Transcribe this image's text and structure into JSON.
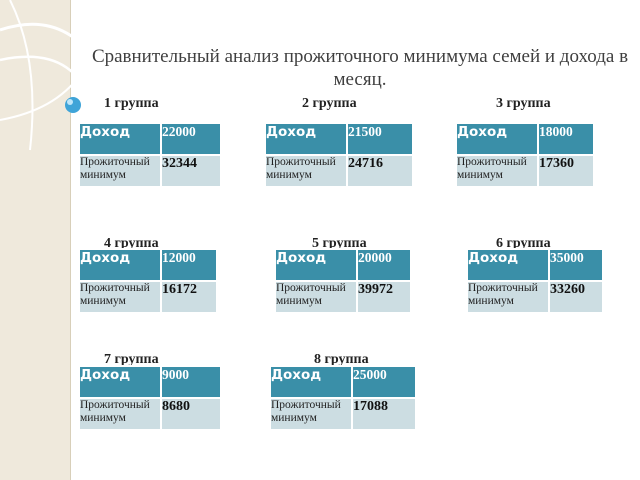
{
  "title": "Сравнительный анализ прожиточного минимума семей и дохода в месяц.",
  "labels": {
    "income": "Доход",
    "minimum": "Прожиточный минимум"
  },
  "groups": [
    {
      "label": "1 группа",
      "income": "22000",
      "minimum": "32344"
    },
    {
      "label": "2 группа",
      "income": "21500",
      "minimum": "24716"
    },
    {
      "label": "3 группа",
      "income": "18000",
      "minimum": "17360"
    },
    {
      "label": "4 группа",
      "income": "12000",
      "minimum": "16172"
    },
    {
      "label": "5 группа",
      "income": "20000",
      "minimum": "39972"
    },
    {
      "label": "6 группа",
      "income": "35000",
      "minimum": "33260"
    },
    {
      "label": "7 группа",
      "income": "9000",
      "minimum": "8680"
    },
    {
      "label": "8 группа",
      "income": "25000",
      "minimum": "17088"
    }
  ],
  "colors": {
    "header": "#3a8fa8",
    "row": "#ccdde2",
    "sidebar": "#efe9dc",
    "bullet": "#3fa4d8"
  }
}
